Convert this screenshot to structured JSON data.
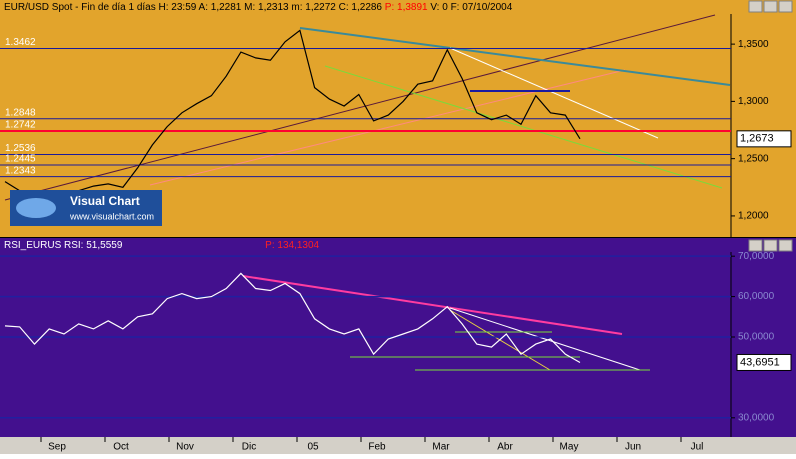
{
  "header": {
    "text": "EUR/USD Spot - Fin de día 1 días H: 23:59 A: 1,2281 M: 1,2313 m: 1,2272 C: 1,2286",
    "p": "P: 1,3891",
    "tail": "V: 0 F: 07/10/2004"
  },
  "logo": {
    "title": "Visual Chart",
    "url": "www.visualchart.com"
  },
  "rsi_header": {
    "text": "RSI_EURUS RSI: 51,5559",
    "p": "P: 134,1304"
  },
  "x_axis": [
    "Sep",
    "Oct",
    "Nov",
    "Dic",
    "05",
    "Feb",
    "Mar",
    "Abr",
    "May",
    "Jun",
    "Jul"
  ],
  "chart_data": [
    {
      "type": "line",
      "color": "#000000",
      "values": [
        1.23,
        1.222,
        1.215,
        1.218,
        1.214,
        1.222,
        1.226,
        1.228,
        1.225,
        1.242,
        1.262,
        1.278,
        1.29,
        1.298,
        1.305,
        1.322,
        1.343,
        1.338,
        1.336,
        1.352,
        1.362,
        1.312,
        1.302,
        1.296,
        1.306,
        1.283,
        1.288,
        1.3,
        1.315,
        1.318,
        1.345,
        1.32,
        1.29,
        1.284,
        1.288,
        1.28,
        1.305,
        1.29,
        1.288,
        1.2673
      ],
      "ylim": [
        1.1816,
        1.3763
      ],
      "yticks": [
        {
          "value": 1.35,
          "label": "1,3500"
        },
        {
          "value": 1.3,
          "label": "1,3000"
        },
        {
          "value": 1.25,
          "label": "1,2500"
        },
        {
          "value": 1.2,
          "label": "1,2000"
        }
      ],
      "levels": [
        {
          "value": 1.3462,
          "color": "#1a1a9a"
        },
        {
          "value": 1.2848,
          "color": "#1a1a9a"
        },
        {
          "value": 1.2742,
          "color": "#ff0030"
        },
        {
          "value": 1.2536,
          "color": "#1a1a9a"
        },
        {
          "value": 1.2445,
          "color": "#1a1a9a"
        },
        {
          "value": 1.2343,
          "color": "#1a1a9a"
        }
      ],
      "current": {
        "value": 1.2673,
        "label": "1,2673"
      }
    },
    {
      "type": "line",
      "color": "#ffffff",
      "values": [
        52.75,
        52.5,
        48.25,
        52,
        50.75,
        53.25,
        52,
        54,
        52,
        55,
        55.75,
        59.5,
        60.75,
        59.5,
        60,
        62,
        65.75,
        62,
        61.5,
        63.25,
        60.75,
        54.5,
        52,
        50.75,
        52,
        45.75,
        49.5,
        50.75,
        52,
        54.5,
        57.5,
        53.25,
        48.25,
        47.5,
        50.75,
        45.75,
        48.25,
        49.5,
        45.75,
        43.6951
      ],
      "ylim": [
        25.25,
        74.5
      ],
      "yticks": [
        {
          "value": 70,
          "label": "70,0000"
        },
        {
          "value": 60,
          "label": "60,0000"
        },
        {
          "value": 50,
          "label": "50,0000"
        },
        {
          "value": 30,
          "label": "30,0000"
        }
      ],
      "current": {
        "value": 43.6951,
        "label": "43,6951"
      }
    }
  ]
}
